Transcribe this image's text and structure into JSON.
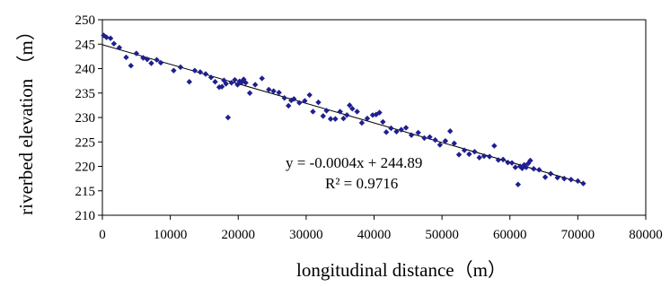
{
  "chart_data": {
    "type": "scatter",
    "xlabel": "longitudinal distance（m）",
    "ylabel": "riverbed elevation （m）",
    "xlim": [
      0,
      80000
    ],
    "ylim": [
      210,
      250
    ],
    "x_ticks": [
      0,
      10000,
      20000,
      30000,
      40000,
      50000,
      60000,
      70000,
      80000
    ],
    "y_ticks": [
      210,
      215,
      220,
      225,
      230,
      235,
      240,
      245,
      250
    ],
    "x_tick_labels": [
      "0",
      "10000",
      "20000",
      "30000",
      "40000",
      "50000",
      "60000",
      "70000",
      "80000"
    ],
    "y_tick_labels": [
      "210",
      "215",
      "220",
      "225",
      "230",
      "235",
      "240",
      "245",
      "250"
    ],
    "grid": false,
    "legend": "none",
    "marker_color": "#1f1f8f",
    "trendline": {
      "slope": -0.0004,
      "intercept": 244.89,
      "x_range": [
        0,
        71000
      ],
      "equation_label": "y = -0.0004x + 244.89",
      "r2_label": "R² = 0.9716"
    },
    "series": [
      {
        "x": [
          200,
          600,
          1200,
          1700,
          2500,
          3500,
          4200,
          5000,
          6000,
          6600,
          7200,
          8000,
          8600,
          10500,
          11500,
          12800,
          13600,
          14400,
          15200,
          16000,
          16600,
          17200,
          17600,
          17900,
          18200,
          18500,
          19000,
          19500,
          19900,
          20200,
          20500,
          20800,
          21100,
          21700,
          22500,
          23500,
          24500,
          25200,
          26000,
          26800,
          27400,
          27800,
          28200,
          29000,
          29800,
          30500,
          31000,
          31800,
          32500,
          33000,
          33600,
          34300,
          35000,
          35500,
          36000,
          36400,
          36800,
          37500,
          38200,
          39000,
          39800,
          40300,
          40800,
          41300,
          41800,
          42500,
          43300,
          44000,
          44700,
          45500,
          46500,
          47400,
          48200,
          49000,
          49700,
          50500,
          51200,
          51800,
          52500,
          53300,
          54000,
          54800,
          55500,
          56200,
          57000,
          57700,
          58300,
          59000,
          59700,
          60300,
          60800,
          61200,
          61500,
          61800,
          62100,
          62400,
          62700,
          63000,
          63500,
          64300,
          65200,
          66000,
          67000,
          68000,
          69000,
          70000,
          70800
        ],
        "y": [
          246.8,
          246.4,
          246.2,
          245.1,
          244.3,
          242.3,
          240.6,
          243.1,
          242.2,
          241.9,
          241.1,
          241.8,
          241.2,
          239.6,
          240.3,
          237.3,
          239.6,
          239.3,
          238.9,
          238.2,
          237.3,
          236.2,
          236.3,
          237.6,
          236.9,
          230.0,
          237.1,
          237.7,
          236.7,
          237.4,
          237.2,
          237.8,
          237.1,
          235.0,
          236.7,
          238.0,
          235.7,
          235.4,
          235.1,
          234.0,
          232.4,
          233.5,
          233.8,
          233.0,
          233.4,
          234.6,
          231.2,
          233.1,
          230.3,
          231.4,
          229.7,
          229.7,
          231.2,
          229.8,
          230.5,
          232.5,
          231.8,
          231.2,
          228.9,
          229.8,
          230.5,
          230.6,
          231.0,
          229.1,
          227.0,
          227.8,
          227.1,
          227.5,
          227.9,
          226.4,
          226.9,
          225.8,
          226.0,
          225.4,
          224.4,
          225.2,
          227.2,
          224.7,
          222.4,
          223.3,
          222.5,
          223.0,
          221.8,
          222.1,
          222.0,
          224.2,
          221.3,
          221.4,
          220.8,
          220.7,
          219.8,
          216.3,
          220.0,
          219.6,
          220.3,
          219.8,
          220.6,
          221.2,
          219.5,
          219.3,
          217.8,
          218.5,
          217.7,
          217.5,
          217.3,
          217.0,
          216.5
        ]
      }
    ]
  }
}
